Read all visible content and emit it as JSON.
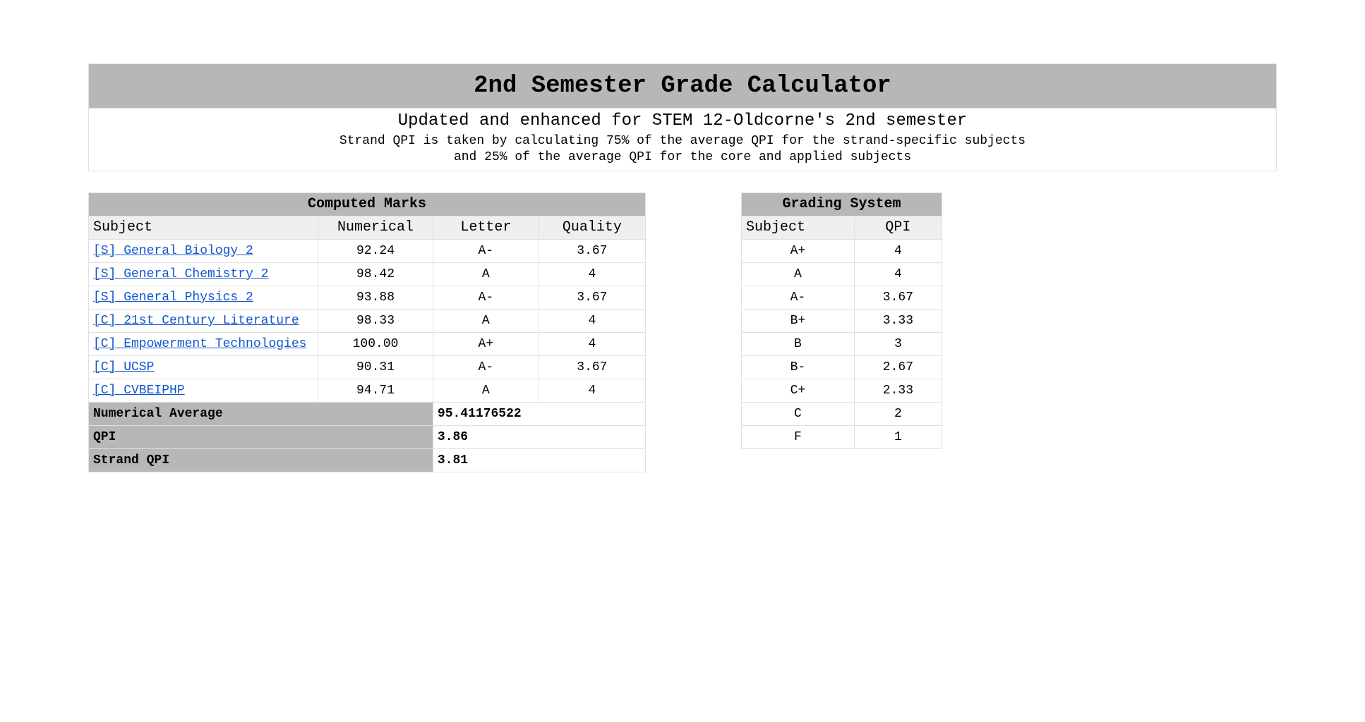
{
  "header": {
    "title": "2nd Semester Grade Calculator",
    "subtitle": "Updated and enhanced for STEM 12-Oldcorne's 2nd semester",
    "description_line1": "Strand QPI is taken by calculating 75% of the average QPI for the strand-specific subjects",
    "description_line2": "and 25% of the average QPI for the core and applied subjects"
  },
  "computed": {
    "table_title": "Computed Marks",
    "columns": {
      "subject": "Subject",
      "numerical": "Numerical",
      "letter": "Letter",
      "quality": "Quality"
    },
    "rows": [
      {
        "subject": "[S] General Biology 2",
        "numerical": "92.24",
        "letter": "A-",
        "quality": "3.67"
      },
      {
        "subject": "[S] General Chemistry 2",
        "numerical": "98.42",
        "letter": "A",
        "quality": "4"
      },
      {
        "subject": "[S] General Physics 2",
        "numerical": "93.88",
        "letter": "A-",
        "quality": "3.67"
      },
      {
        "subject": "[C] 21st Century Literature",
        "numerical": "98.33",
        "letter": "A",
        "quality": "4"
      },
      {
        "subject": "[C] Empowerment Technologies",
        "numerical": "100.00",
        "letter": "A+",
        "quality": "4"
      },
      {
        "subject": "[C] UCSP",
        "numerical": "90.31",
        "letter": "A-",
        "quality": "3.67"
      },
      {
        "subject": "[C] CVBEIPHP",
        "numerical": "94.71",
        "letter": "A",
        "quality": "4"
      }
    ],
    "summary": {
      "numerical_average_label": "Numerical Average",
      "numerical_average_value": "95.41176522",
      "qpi_label": "QPI",
      "qpi_value": "3.86",
      "strand_qpi_label": "Strand QPI",
      "strand_qpi_value": "3.81"
    }
  },
  "grading": {
    "table_title": "Grading System",
    "columns": {
      "subject": "Subject",
      "qpi": "QPI"
    },
    "rows": [
      {
        "grade": "A+",
        "qpi": "4"
      },
      {
        "grade": "A",
        "qpi": "4"
      },
      {
        "grade": "A-",
        "qpi": "3.67"
      },
      {
        "grade": "B+",
        "qpi": "3.33"
      },
      {
        "grade": "B",
        "qpi": "3"
      },
      {
        "grade": "B-",
        "qpi": "2.67"
      },
      {
        "grade": "C+",
        "qpi": "2.33"
      },
      {
        "grade": "C",
        "qpi": "2"
      },
      {
        "grade": "F",
        "qpi": "1"
      }
    ]
  },
  "styling": {
    "header_bg": "#b7b7b7",
    "subheader_bg": "#efefef",
    "border_color": "#e0e0e0",
    "link_color": "#1155cc",
    "font_family": "Courier New",
    "title_fontsize": 34,
    "subtitle_fontsize": 24,
    "body_fontsize": 18
  }
}
